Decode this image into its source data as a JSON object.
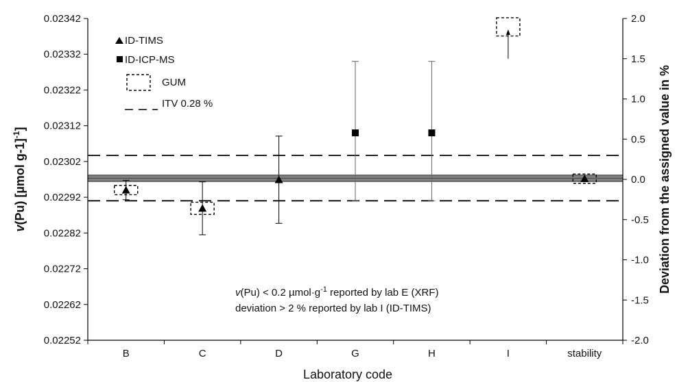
{
  "chart_data": {
    "type": "scatter",
    "ylabel_left": "(Pu) [µmol g-1]",
    "ylabel_left_italic_prefix": "v",
    "ylabel_left_unit_superscript": "-1",
    "ylabel_right": "Deviation from the assigned value in %",
    "xlabel": "Laboratory code",
    "categories": [
      "B",
      "C",
      "D",
      "G",
      "H",
      "I",
      "stability"
    ],
    "y_left_ticks": [
      "0.02342",
      "0.02332",
      "0.02322",
      "0.02312",
      "0.02302",
      "0.02292",
      "0.02282",
      "0.02272",
      "0.02262",
      "0.02252"
    ],
    "y_left_lim": [
      0.02252,
      0.02342
    ],
    "y_right_ticks": [
      "2.0",
      "1.5",
      "1.0",
      "0.5",
      "0.0",
      "-0.5",
      "-1.0",
      "-1.5",
      "-2.0"
    ],
    "y_right_lim": [
      -2.0,
      2.0
    ],
    "assigned_value": 0.022973,
    "assigned_band": [
      0.022964,
      0.022982
    ],
    "itv_lines": [
      0.023037,
      0.02291
    ],
    "series": [
      {
        "name": "ID-TIMS",
        "marker": "triangle",
        "points": [
          {
            "category": "B",
            "value": 0.02294,
            "error": [
              0.022913,
              0.022967
            ],
            "gum": [
              0.022927,
              0.022953
            ]
          },
          {
            "category": "C",
            "value": 0.022889,
            "error": [
              0.022815,
              0.022963
            ],
            "gum": [
              0.022872,
              0.022906
            ]
          },
          {
            "category": "D",
            "value": 0.022969,
            "error": [
              0.022847,
              0.023091
            ],
            "gum": null
          },
          {
            "category": "I",
            "value_deviation_percent": 1.83,
            "value_off_scale": true,
            "error_deviation_percent": [
              1.5,
              1.83
            ],
            "gum": [
              0.023371,
              0.023422
            ]
          },
          {
            "category": "stability",
            "value": 0.022972,
            "error": null,
            "gum": [
              0.022959,
              0.022985
            ]
          }
        ]
      },
      {
        "name": "ID-ICP-MS",
        "marker": "square",
        "points": [
          {
            "category": "G",
            "value": 0.0231,
            "error": [
              0.02291,
              0.0233
            ]
          },
          {
            "category": "H",
            "value": 0.0231,
            "error": [
              0.02291,
              0.0233
            ]
          }
        ]
      }
    ],
    "legend": [
      {
        "symbol": "triangle",
        "label": "ID-TIMS"
      },
      {
        "symbol": "square",
        "label": "ID-ICP-MS"
      },
      {
        "symbol": "dashed-box",
        "label": "GUM"
      },
      {
        "symbol": "dashed-line",
        "label": "ITV 0.28 %"
      }
    ],
    "legend_position": "top-left",
    "annotations": {
      "line1_italic": "v",
      "line1": "(Pu) < 0.2 µmol·g",
      "line1_superscript": "-1",
      "line1_suffix": " reported by lab E (XRF)",
      "line2": "deviation > 2 % reported by lab I (ID-TIMS)"
    },
    "grid": false
  }
}
